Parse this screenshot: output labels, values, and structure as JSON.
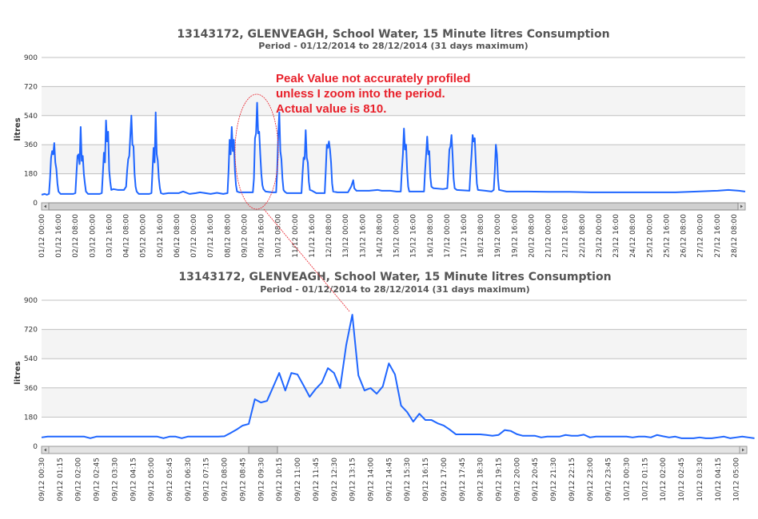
{
  "colors": {
    "series": "#1f66ff",
    "annotation": "#e8202a",
    "band": "#f4f4f4",
    "grid": "#c0c0c0"
  },
  "annotation": {
    "lines": [
      "Peak Value not accurately profiled",
      "unless I zoom into the period.",
      "Actual value is 810."
    ]
  },
  "chart_data": [
    {
      "type": "line",
      "title": "13143172, GLENVEAGH, School Water, 15 Minute litres Consumption",
      "subtitle": "Period - 01/12/2014 to 28/12/2014 (31 days maximum)",
      "ylabel": "litres",
      "xlabel": "",
      "ylim": [
        0,
        900
      ],
      "yticks": [
        "0",
        "180",
        "360",
        "540",
        "720",
        "900"
      ],
      "x_unit": "hours since 01/12 00:00",
      "xlim": [
        0,
        666
      ],
      "xtick_step_hours": 16,
      "xticks": [
        "01/12 00:00",
        "01/12 16:00",
        "02/12 08:00",
        "03/12 00:00",
        "03/12 16:00",
        "04/12 08:00",
        "05/12 00:00",
        "05/12 16:00",
        "06/12 08:00",
        "07/12 00:00",
        "07/12 16:00",
        "08/12 08:00",
        "09/12 00:00",
        "09/12 16:00",
        "10/12 08:00",
        "11/12 00:00",
        "11/12 16:00",
        "12/12 08:00",
        "13/12 00:00",
        "13/12 16:00",
        "14/12 08:00",
        "15/12 00:00",
        "15/12 16:00",
        "16/12 08:00",
        "17/12 00:00",
        "17/12 16:00",
        "18/12 08:00",
        "19/12 00:00",
        "19/12 16:00",
        "20/12 08:00",
        "21/12 00:00",
        "21/12 16:00",
        "22/12 08:00",
        "23/12 00:00",
        "23/12 16:00",
        "24/12 08:00",
        "25/12 00:00",
        "25/12 16:00",
        "26/12 08:00",
        "27/12 00:00",
        "27/12 16:00",
        "28/12 08:00"
      ],
      "grid": true,
      "scrollbar": true,
      "series": [
        {
          "name": "litres",
          "points": [
            [
              0,
              50
            ],
            [
              3,
              55
            ],
            [
              5,
              50
            ],
            [
              7,
              55
            ],
            [
              8,
              150
            ],
            [
              9,
              280
            ],
            [
              10,
              320
            ],
            [
              11,
              300
            ],
            [
              12,
              370
            ],
            [
              13,
              250
            ],
            [
              14,
              210
            ],
            [
              15,
              120
            ],
            [
              16,
              70
            ],
            [
              18,
              55
            ],
            [
              24,
              55
            ],
            [
              30,
              55
            ],
            [
              32,
              60
            ],
            [
              33,
              180
            ],
            [
              34,
              290
            ],
            [
              35,
              300
            ],
            [
              36,
              240
            ],
            [
              37,
              470
            ],
            [
              38,
              260
            ],
            [
              39,
              290
            ],
            [
              40,
              180
            ],
            [
              41,
              120
            ],
            [
              42,
              70
            ],
            [
              44,
              55
            ],
            [
              55,
              55
            ],
            [
              57,
              60
            ],
            [
              58,
              180
            ],
            [
              59,
              310
            ],
            [
              60,
              250
            ],
            [
              61,
              510
            ],
            [
              62,
              380
            ],
            [
              63,
              440
            ],
            [
              64,
              200
            ],
            [
              65,
              130
            ],
            [
              66,
              80
            ],
            [
              68,
              85
            ],
            [
              72,
              80
            ],
            [
              78,
              80
            ],
            [
              80,
              100
            ],
            [
              81,
              200
            ],
            [
              82,
              270
            ],
            [
              83,
              290
            ],
            [
              85,
              540
            ],
            [
              86,
              360
            ],
            [
              87,
              350
            ],
            [
              88,
              180
            ],
            [
              89,
              100
            ],
            [
              90,
              70
            ],
            [
              92,
              55
            ],
            [
              102,
              55
            ],
            [
              104,
              60
            ],
            [
              105,
              200
            ],
            [
              106,
              340
            ],
            [
              107,
              250
            ],
            [
              108,
              560
            ],
            [
              109,
              300
            ],
            [
              110,
              260
            ],
            [
              111,
              150
            ],
            [
              112,
              90
            ],
            [
              113,
              60
            ],
            [
              115,
              55
            ],
            [
              120,
              60
            ],
            [
              130,
              60
            ],
            [
              134,
              70
            ],
            [
              140,
              55
            ],
            [
              146,
              60
            ],
            [
              150,
              65
            ],
            [
              160,
              55
            ],
            [
              166,
              62
            ],
            [
              172,
              55
            ],
            [
              176,
              60
            ],
            [
              177,
              200
            ],
            [
              178,
              390
            ],
            [
              179,
              300
            ],
            [
              180,
              470
            ],
            [
              181,
              320
            ],
            [
              182,
              390
            ],
            [
              183,
              200
            ],
            [
              184,
              110
            ],
            [
              185,
              70
            ],
            [
              187,
              65
            ],
            [
              200,
              65
            ],
            [
              201,
              150
            ],
            [
              202,
              400
            ],
            [
              203,
              430
            ],
            [
              204,
              620
            ],
            [
              205,
              430
            ],
            [
              206,
              440
            ],
            [
              207,
              300
            ],
            [
              208,
              180
            ],
            [
              209,
              110
            ],
            [
              210,
              85
            ],
            [
              212,
              70
            ],
            [
              218,
              65
            ],
            [
              222,
              65
            ],
            [
              223,
              200
            ],
            [
              224,
              420
            ],
            [
              225,
              560
            ],
            [
              226,
              320
            ],
            [
              227,
              270
            ],
            [
              228,
              150
            ],
            [
              229,
              80
            ],
            [
              230,
              70
            ],
            [
              232,
              60
            ],
            [
              246,
              60
            ],
            [
              247,
              180
            ],
            [
              248,
              280
            ],
            [
              249,
              270
            ],
            [
              250,
              450
            ],
            [
              251,
              280
            ],
            [
              252,
              250
            ],
            [
              253,
              130
            ],
            [
              254,
              80
            ],
            [
              256,
              75
            ],
            [
              260,
              60
            ],
            [
              268,
              60
            ],
            [
              269,
              200
            ],
            [
              270,
              360
            ],
            [
              271,
              340
            ],
            [
              272,
              380
            ],
            [
              273,
              330
            ],
            [
              274,
              250
            ],
            [
              275,
              120
            ],
            [
              276,
              70
            ],
            [
              280,
              65
            ],
            [
              290,
              65
            ],
            [
              293,
              100
            ],
            [
              295,
              140
            ],
            [
              296,
              90
            ],
            [
              298,
              75
            ],
            [
              310,
              75
            ],
            [
              318,
              80
            ],
            [
              322,
              75
            ],
            [
              330,
              75
            ],
            [
              336,
              70
            ],
            [
              340,
              70
            ],
            [
              341,
              200
            ],
            [
              342,
              300
            ],
            [
              343,
              460
            ],
            [
              344,
              330
            ],
            [
              345,
              360
            ],
            [
              346,
              200
            ],
            [
              347,
              100
            ],
            [
              348,
              70
            ],
            [
              356,
              70
            ],
            [
              362,
              70
            ],
            [
              363,
              200
            ],
            [
              364,
              300
            ],
            [
              365,
              410
            ],
            [
              366,
              300
            ],
            [
              367,
              320
            ],
            [
              368,
              160
            ],
            [
              369,
              100
            ],
            [
              371,
              90
            ],
            [
              380,
              85
            ],
            [
              384,
              90
            ],
            [
              385,
              200
            ],
            [
              386,
              330
            ],
            [
              387,
              350
            ],
            [
              388,
              420
            ],
            [
              389,
              300
            ],
            [
              390,
              150
            ],
            [
              391,
              90
            ],
            [
              393,
              80
            ],
            [
              405,
              75
            ],
            [
              406,
              200
            ],
            [
              407,
              300
            ],
            [
              408,
              420
            ],
            [
              409,
              380
            ],
            [
              410,
              400
            ],
            [
              411,
              250
            ],
            [
              412,
              120
            ],
            [
              413,
              80
            ],
            [
              420,
              75
            ],
            [
              426,
              70
            ],
            [
              428,
              80
            ],
            [
              429,
              200
            ],
            [
              430,
              360
            ],
            [
              431,
              300
            ],
            [
              432,
              150
            ],
            [
              433,
              80
            ],
            [
              440,
              70
            ],
            [
              460,
              70
            ],
            [
              480,
              68
            ],
            [
              500,
              68
            ],
            [
              520,
              65
            ],
            [
              540,
              65
            ],
            [
              560,
              65
            ],
            [
              580,
              65
            ],
            [
              600,
              65
            ],
            [
              620,
              70
            ],
            [
              640,
              75
            ],
            [
              650,
              80
            ],
            [
              660,
              75
            ],
            [
              666,
              70
            ]
          ]
        }
      ]
    },
    {
      "type": "line",
      "title": "13143172, GLENVEAGH, School Water, 15 Minute litres Consumption",
      "subtitle": "Period - 01/12/2014 to 28/12/2014 (31 days maximum)",
      "ylabel": "litres",
      "xlabel": "",
      "ylim": [
        0,
        900
      ],
      "yticks": [
        "0",
        "180",
        "360",
        "540",
        "720",
        "900"
      ],
      "x_start": "09/12 00:30",
      "x_step_minutes": 15,
      "xtick_step_points": 3,
      "xticks": [
        "09/12 00:30",
        "09/12 01:15",
        "09/12 02:00",
        "09/12 02:45",
        "09/12 03:30",
        "09/12 04:15",
        "09/12 05:00",
        "09/12 05:45",
        "09/12 06:30",
        "09/12 07:15",
        "09/12 08:00",
        "09/12 08:45",
        "09/12 09:30",
        "09/12 10:15",
        "09/12 11:00",
        "09/12 11:45",
        "09/12 12:30",
        "09/12 13:15",
        "09/12 14:00",
        "09/12 14:45",
        "09/12 15:30",
        "09/12 16:15",
        "09/12 17:00",
        "09/12 17:45",
        "09/12 18:30",
        "09/12 19:15",
        "09/12 20:00",
        "09/12 20:45",
        "09/12 21:30",
        "09/12 22:15",
        "09/12 23:00",
        "09/12 23:45",
        "10/12 00:30",
        "10/12 01:15",
        "10/12 02:00",
        "10/12 02:45",
        "10/12 03:30",
        "10/12 04:15",
        "10/12 05:00"
      ],
      "grid": true,
      "scrollbar": true,
      "series": [
        {
          "name": "litres",
          "values": [
            55,
            60,
            60,
            60,
            60,
            60,
            60,
            60,
            50,
            60,
            60,
            60,
            60,
            60,
            60,
            60,
            60,
            60,
            60,
            60,
            50,
            60,
            60,
            50,
            60,
            60,
            60,
            60,
            60,
            60,
            62,
            82,
            103,
            128,
            138,
            290,
            270,
            280,
            365,
            452,
            344,
            452,
            443,
            375,
            305,
            354,
            393,
            482,
            452,
            359,
            624,
            811,
            437,
            344,
            359,
            324,
            369,
            511,
            443,
            251,
            211,
            152,
            201,
            162,
            162,
            142,
            128,
            103,
            74,
            74,
            74,
            74,
            74,
            70,
            65,
            70,
            100,
            95,
            75,
            65,
            65,
            65,
            55,
            60,
            60,
            60,
            70,
            65,
            65,
            72,
            55,
            60,
            60,
            60,
            60,
            60,
            60,
            55,
            60,
            60,
            55,
            70,
            62,
            55,
            60,
            50,
            50,
            50,
            55,
            50,
            50,
            55,
            60,
            50,
            55,
            60,
            55,
            50
          ]
        }
      ]
    }
  ]
}
